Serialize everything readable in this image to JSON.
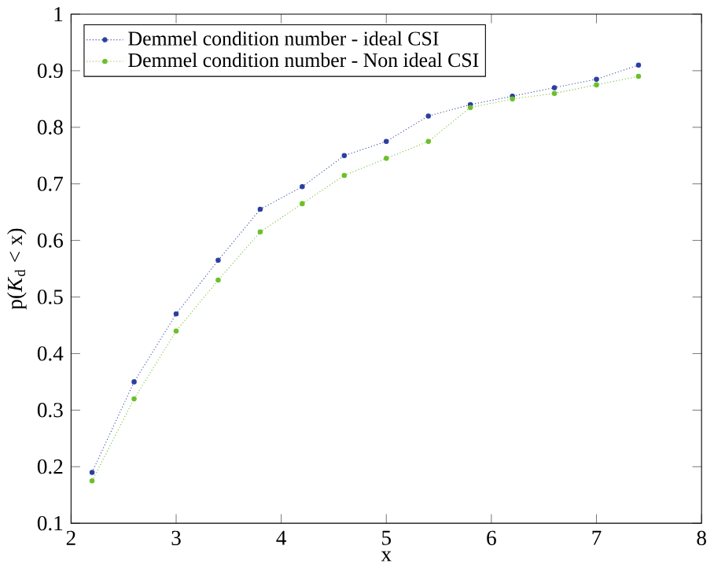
{
  "chart_data": {
    "type": "line",
    "xlabel": "x",
    "ylabel": "p(*K*$_{d}$ < x)",
    "xlim": [
      2,
      8
    ],
    "ylim": [
      0.1,
      1
    ],
    "xticks": [
      2,
      3,
      4,
      5,
      6,
      7,
      8
    ],
    "yticks": [
      0.1,
      0.2,
      0.3,
      0.4,
      0.5,
      0.6,
      0.7,
      0.8,
      0.9,
      1
    ],
    "x": [
      2.2,
      2.6,
      3.0,
      3.4,
      3.8,
      4.2,
      4.6,
      5.0,
      5.4,
      5.8,
      6.2,
      6.6,
      7.0,
      7.4
    ],
    "legend": "top left",
    "marker": "circle",
    "line_style": "dotted",
    "grid": false,
    "series": [
      {
        "name": "Demmel condition number - ideal CSI",
        "color": "#2b3fa0",
        "values": [
          0.19,
          0.35,
          0.47,
          0.565,
          0.655,
          0.695,
          0.75,
          0.775,
          0.82,
          0.84,
          0.855,
          0.87,
          0.885,
          0.91
        ]
      },
      {
        "name": "Demmel condition number - Non ideal CSI",
        "color": "#6cbf2a",
        "values": [
          0.175,
          0.32,
          0.44,
          0.53,
          0.615,
          0.665,
          0.715,
          0.745,
          0.775,
          0.835,
          0.85,
          0.86,
          0.875,
          0.89
        ]
      }
    ]
  }
}
